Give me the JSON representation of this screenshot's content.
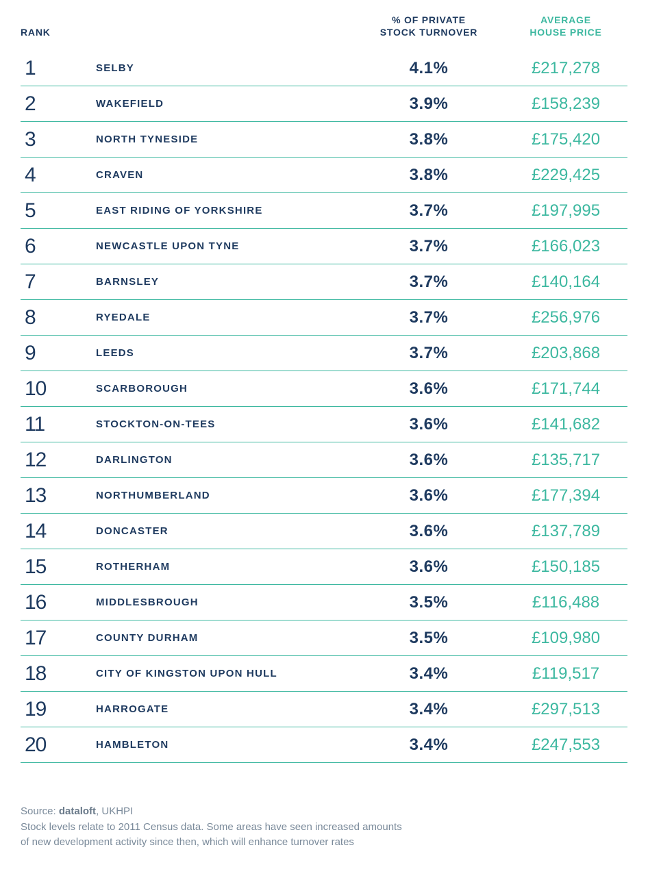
{
  "headers": {
    "rank": "RANK",
    "turnover_l1": "% OF PRIVATE",
    "turnover_l2": "STOCK TURNOVER",
    "price_l1": "AVERAGE",
    "price_l2": "HOUSE PRICE"
  },
  "colors": {
    "text_dark": "#1e3a5f",
    "accent": "#3db8a0",
    "footnote": "#7a8a9a",
    "background": "#ffffff"
  },
  "rows": [
    {
      "rank": "1",
      "location": "SELBY",
      "turnover": "4.1%",
      "price": "£217,278"
    },
    {
      "rank": "2",
      "location": "WAKEFIELD",
      "turnover": "3.9%",
      "price": "£158,239"
    },
    {
      "rank": "3",
      "location": "NORTH TYNESIDE",
      "turnover": "3.8%",
      "price": "£175,420"
    },
    {
      "rank": "4",
      "location": "CRAVEN",
      "turnover": "3.8%",
      "price": "£229,425"
    },
    {
      "rank": "5",
      "location": "EAST RIDING OF YORKSHIRE",
      "turnover": "3.7%",
      "price": "£197,995"
    },
    {
      "rank": "6",
      "location": "NEWCASTLE UPON TYNE",
      "turnover": "3.7%",
      "price": "£166,023"
    },
    {
      "rank": "7",
      "location": "BARNSLEY",
      "turnover": "3.7%",
      "price": "£140,164"
    },
    {
      "rank": "8",
      "location": "RYEDALE",
      "turnover": "3.7%",
      "price": "£256,976"
    },
    {
      "rank": "9",
      "location": "LEEDS",
      "turnover": "3.7%",
      "price": "£203,868"
    },
    {
      "rank": "10",
      "location": "SCARBOROUGH",
      "turnover": "3.6%",
      "price": "£171,744"
    },
    {
      "rank": "11",
      "location": "STOCKTON-ON-TEES",
      "turnover": "3.6%",
      "price": "£141,682"
    },
    {
      "rank": "12",
      "location": "DARLINGTON",
      "turnover": "3.6%",
      "price": "£135,717"
    },
    {
      "rank": "13",
      "location": "NORTHUMBERLAND",
      "turnover": "3.6%",
      "price": "£177,394"
    },
    {
      "rank": "14",
      "location": "DONCASTER",
      "turnover": "3.6%",
      "price": "£137,789"
    },
    {
      "rank": "15",
      "location": "ROTHERHAM",
      "turnover": "3.6%",
      "price": "£150,185"
    },
    {
      "rank": "16",
      "location": "MIDDLESBROUGH",
      "turnover": "3.5%",
      "price": "£116,488"
    },
    {
      "rank": "17",
      "location": "COUNTY DURHAM",
      "turnover": "3.5%",
      "price": "£109,980"
    },
    {
      "rank": "18",
      "location": "CITY OF KINGSTON UPON HULL",
      "turnover": "3.4%",
      "price": "£119,517"
    },
    {
      "rank": "19",
      "location": "HARROGATE",
      "turnover": "3.4%",
      "price": "£297,513"
    },
    {
      "rank": "20",
      "location": "HAMBLETON",
      "turnover": "3.4%",
      "price": "£247,553"
    }
  ],
  "footnote": {
    "source_prefix": "Source: ",
    "source_strong": "dataloft",
    "source_suffix": ", UKHPI",
    "line2": "Stock levels relate to 2011 Census data. Some areas have seen increased amounts",
    "line3": "of new development activity since then, which will enhance turnover rates"
  }
}
